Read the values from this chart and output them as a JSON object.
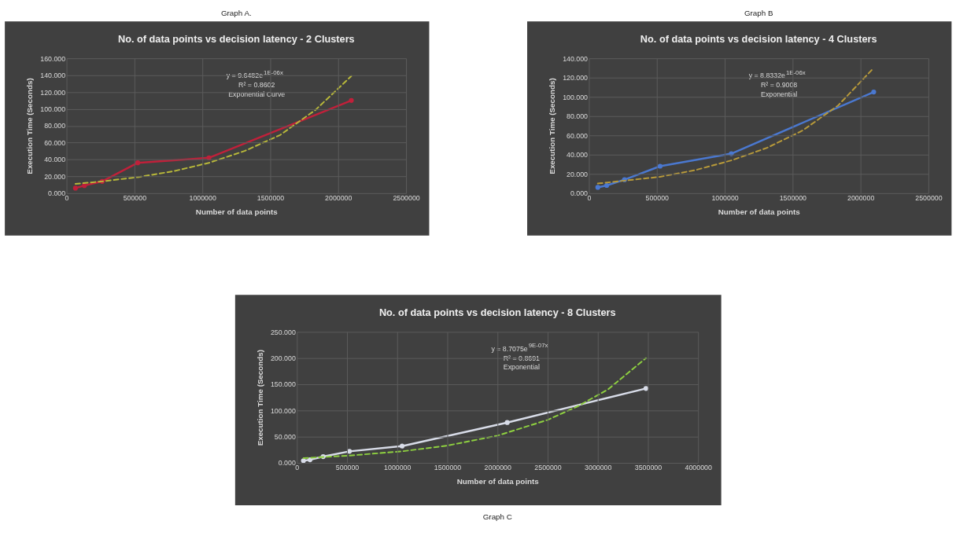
{
  "chart_data": [
    {
      "type": "line",
      "title": "No. of data points vs decision latency - 2 Clusters",
      "xlabel": "Number of data points",
      "ylabel": "Execution Time (Seconds)",
      "xlim": [
        0,
        2500000
      ],
      "xticks": [
        0,
        500000,
        1000000,
        1500000,
        2000000,
        2500000
      ],
      "ylim": [
        0,
        160
      ],
      "yticks": [
        {
          "value": 0,
          "label": "0.000"
        },
        {
          "value": 20,
          "label": "20.000"
        },
        {
          "value": 40,
          "label": "40.000"
        },
        {
          "value": 60,
          "label": "60.000"
        },
        {
          "value": 80,
          "label": "80.000"
        },
        {
          "value": 100,
          "label": "100.000"
        },
        {
          "value": 120,
          "label": "120.000"
        },
        {
          "value": 140,
          "label": "140.000"
        },
        {
          "value": 160,
          "label": "160.000"
        }
      ],
      "grid": true,
      "series": [
        {
          "color": "#c0203a",
          "marker": "circle",
          "line_style": "solid",
          "x": [
            65536,
            131072,
            262144,
            524288,
            1048576,
            2097152
          ],
          "values": [
            6,
            9,
            14,
            36,
            42,
            110
          ]
        },
        {
          "color": "#b8b83a",
          "marker": "none",
          "line_style": "dashed",
          "x": [
            65536,
            262144,
            524288,
            786432,
            1048576,
            1310720,
            1572864,
            1835008,
            2097152
          ],
          "values": [
            11,
            14,
            19,
            26,
            36,
            50,
            69,
            99,
            139
          ]
        }
      ],
      "annotations": [
        "Graph A.",
        "y = 9.6482e$^{1E-06x}$\nR² = 0.8602\nExponential Curve"
      ]
    },
    {
      "type": "line",
      "title": "No. of data points vs decision latency - 4 Clusters",
      "xlabel": "Number of data points",
      "ylabel": "Execution Time (Seconds)",
      "xlim": [
        0,
        2500000
      ],
      "xticks": [
        0,
        500000,
        1000000,
        1500000,
        2000000,
        2500000
      ],
      "ylim": [
        0,
        140
      ],
      "yticks": [
        {
          "value": 0,
          "label": "0.000"
        },
        {
          "value": 20,
          "label": "20.000"
        },
        {
          "value": 40,
          "label": "40.000"
        },
        {
          "value": 60,
          "label": "60.000"
        },
        {
          "value": 80,
          "label": "80.000"
        },
        {
          "value": 100,
          "label": "100.000"
        },
        {
          "value": 120,
          "label": "120.000"
        },
        {
          "value": 140,
          "label": "140.000"
        }
      ],
      "grid": true,
      "series": [
        {
          "color": "#4a78d0",
          "marker": "circle",
          "line_style": "solid",
          "x": [
            65536,
            131072,
            262144,
            524288,
            1048576,
            2097152
          ],
          "values": [
            6,
            8,
            14,
            28,
            41,
            105
          ]
        },
        {
          "color": "#b89a3a",
          "marker": "none",
          "line_style": "dashed",
          "x": [
            65536,
            262144,
            524288,
            786432,
            1048576,
            1310720,
            1572864,
            1835008,
            2097152
          ],
          "values": [
            10,
            13,
            17,
            24,
            34,
            47,
            65,
            91,
            130
          ]
        }
      ],
      "annotations": [
        "Graph B",
        "y = 8.8332e$^{1E-06x}$\nR² = 0.9008\nExponential"
      ]
    },
    {
      "type": "line",
      "title": "No. of data points vs decision latency - 8 Clusters",
      "xlabel": "Number of data points",
      "ylabel": "Execution Time (Seconds)",
      "xlim": [
        0,
        4000000
      ],
      "xticks": [
        0,
        500000,
        1000000,
        1500000,
        2000000,
        2500000,
        3000000,
        3500000,
        4000000
      ],
      "ylim": [
        0,
        250
      ],
      "yticks": [
        {
          "value": 0,
          "label": "0.000"
        },
        {
          "value": 50,
          "label": "50.000"
        },
        {
          "value": 100,
          "label": "100.000"
        },
        {
          "value": 150,
          "label": "150.000"
        },
        {
          "value": 200,
          "label": "200.000"
        },
        {
          "value": 250,
          "label": "250.000"
        }
      ],
      "grid": true,
      "series": [
        {
          "color": "#d8dce8",
          "marker": "circle",
          "line_style": "solid",
          "x": [
            65536,
            131072,
            262144,
            524288,
            1048576,
            2097152,
            3480000
          ],
          "values": [
            4,
            6,
            12,
            22,
            32,
            77,
            142
          ]
        },
        {
          "color": "#8ed040",
          "marker": "none",
          "line_style": "dashed",
          "x": [
            65536,
            524288,
            1048576,
            1500000,
            2000000,
            2500000,
            2800000,
            3100000,
            3480000
          ],
          "values": [
            9,
            14,
            22,
            33,
            52,
            82,
            108,
            140,
            200
          ]
        }
      ],
      "annotations": [
        "Graph C",
        "y = 8.7075e$^{9E-07x}$\nR² = 0.8691\nExponential"
      ]
    }
  ]
}
